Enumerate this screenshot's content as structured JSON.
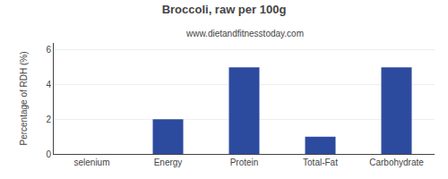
{
  "chart_data": {
    "type": "bar",
    "title": "Broccoli, raw per 100g",
    "subtitle": "www.dietandfitnesstoday.com",
    "categories": [
      "selenium",
      "Energy",
      "Protein",
      "Total-Fat",
      "Carbohydrate"
    ],
    "values": [
      0,
      2.0,
      5.0,
      1.0,
      5.0
    ],
    "color": "#2d4b9e",
    "ylabel": "Percentage of RDH (%)",
    "ylim": [
      0,
      6.4
    ],
    "yticks": [
      0,
      2,
      4,
      6
    ],
    "grid": true
  }
}
